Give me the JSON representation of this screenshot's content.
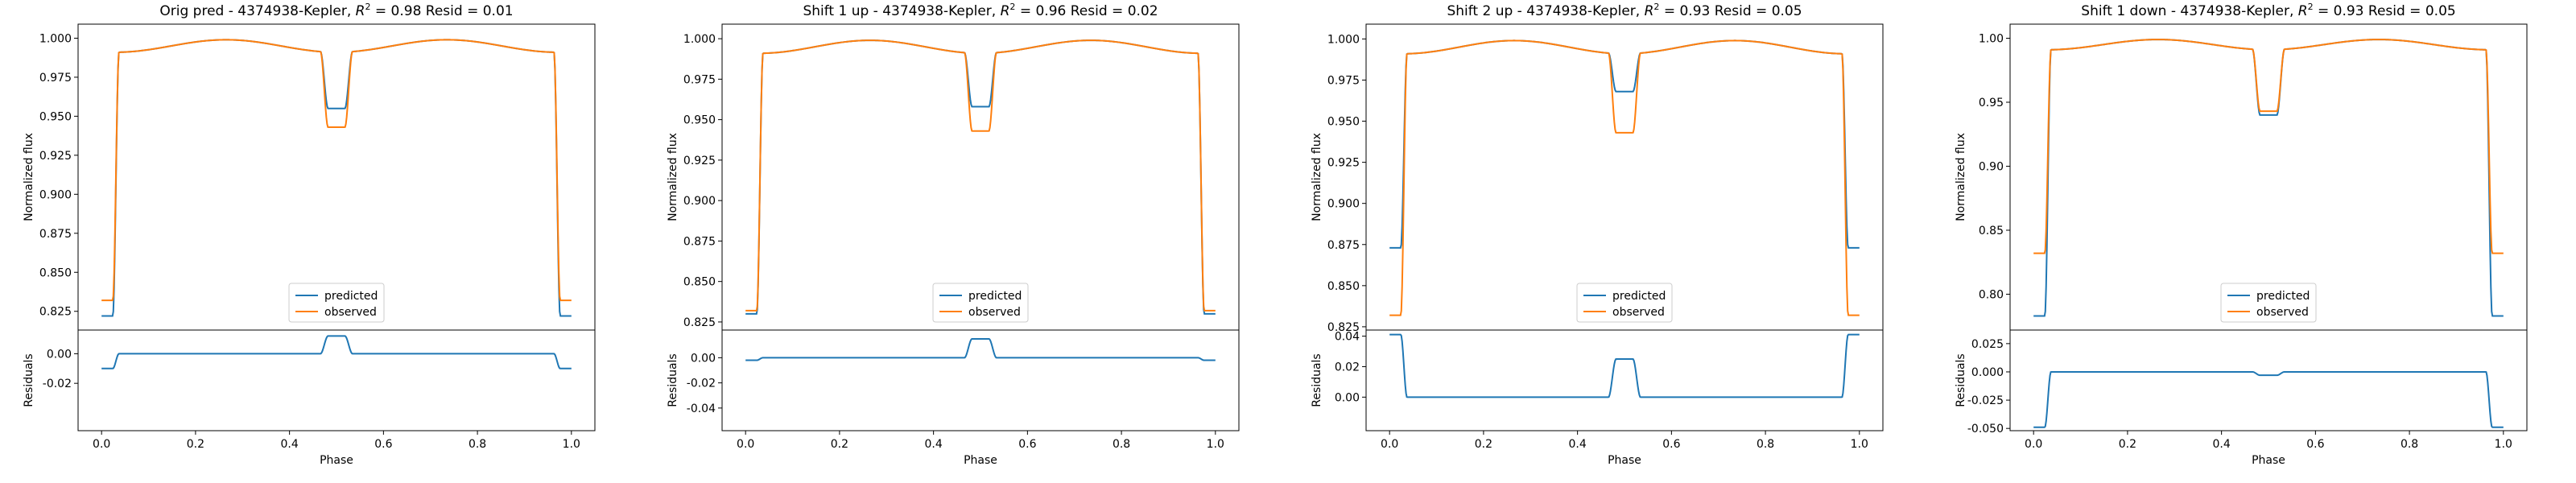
{
  "chart_data": [
    {
      "type": "line",
      "title": "Orig pred - 4374938-Kepler, $R^2 = 0.98$ Resid = 0.01",
      "title_prefix": "Orig pred - 4374938-Kepler,",
      "r2": "0.98",
      "resid": "0.01",
      "ylabel": "Normalized flux",
      "resid_ylabel": "Residuals",
      "xlabel": "Phase",
      "xlim": [
        -0.05,
        1.05
      ],
      "xticks": [
        "0.0",
        "0.2",
        "0.4",
        "0.6",
        "0.8",
        "1.0"
      ],
      "ylim": [
        0.813,
        1.009
      ],
      "yticks": [
        "0.825",
        "0.850",
        "0.875",
        "0.900",
        "0.925",
        "0.950",
        "0.975",
        "1.000"
      ],
      "resid_ylim": [
        -0.052,
        0.016
      ],
      "resid_yticks": [
        "0.00",
        "-0.02"
      ],
      "series": [
        {
          "name": "predicted",
          "color": "#1f77b4",
          "base": 0.822,
          "top": 0.999,
          "dip": 0.955
        },
        {
          "name": "observed",
          "color": "#ff7f0e",
          "base": 0.832,
          "top": 0.999,
          "dip": 0.943
        }
      ],
      "legend": "lower center"
    },
    {
      "type": "line",
      "title": "Shift 1 up - 4374938-Kepler, $R^2 = 0.96$ Resid = 0.02",
      "title_prefix": "Shift 1 up - 4374938-Kepler,",
      "r2": "0.96",
      "resid": "0.02",
      "ylabel": "Normalized flux",
      "resid_ylabel": "Residuals",
      "xlabel": "Phase",
      "xlim": [
        -0.05,
        1.05
      ],
      "xticks": [
        "0.0",
        "0.2",
        "0.4",
        "0.6",
        "0.8",
        "1.0"
      ],
      "ylim": [
        0.82,
        1.009
      ],
      "yticks": [
        "0.825",
        "0.850",
        "0.875",
        "0.900",
        "0.925",
        "0.950",
        "0.975",
        "1.000"
      ],
      "resid_ylim": [
        -0.058,
        0.022
      ],
      "resid_yticks": [
        "0.00",
        "-0.02",
        "-0.04"
      ],
      "series": [
        {
          "name": "predicted",
          "color": "#1f77b4",
          "base": 0.83,
          "top": 0.999,
          "dip": 0.958
        },
        {
          "name": "observed",
          "color": "#ff7f0e",
          "base": 0.832,
          "top": 0.999,
          "dip": 0.943
        }
      ],
      "legend": "lower center"
    },
    {
      "type": "line",
      "title": "Shift 2 up - 4374938-Kepler, $R^2 = 0.93$ Resid = 0.05",
      "title_prefix": "Shift 2 up - 4374938-Kepler,",
      "r2": "0.93",
      "resid": "0.05",
      "ylabel": "Normalized flux",
      "resid_ylabel": "Residuals",
      "xlabel": "Phase",
      "xlim": [
        -0.05,
        1.05
      ],
      "xticks": [
        "0.0",
        "0.2",
        "0.4",
        "0.6",
        "0.8",
        "1.0"
      ],
      "ylim": [
        0.823,
        1.009
      ],
      "yticks": [
        "0.825",
        "0.850",
        "0.875",
        "0.900",
        "0.925",
        "0.950",
        "0.975",
        "1.000"
      ],
      "resid_ylim": [
        -0.022,
        0.044
      ],
      "resid_yticks": [
        "0.04",
        "0.02",
        "0.00"
      ],
      "series": [
        {
          "name": "predicted",
          "color": "#1f77b4",
          "base": 0.873,
          "top": 0.999,
          "dip": 0.968
        },
        {
          "name": "observed",
          "color": "#ff7f0e",
          "base": 0.832,
          "top": 0.999,
          "dip": 0.943
        }
      ],
      "legend": "lower center"
    },
    {
      "type": "line",
      "title": "Shift 1 down - 4374938-Kepler, $R^2 = 0.93$ Resid = 0.05",
      "title_prefix": "Shift 1 down - 4374938-Kepler,",
      "r2": "0.93",
      "resid": "0.05",
      "ylabel": "Normalized flux",
      "resid_ylabel": "Residuals",
      "xlabel": "Phase",
      "xlim": [
        -0.05,
        1.05
      ],
      "xticks": [
        "0.0",
        "0.2",
        "0.4",
        "0.6",
        "0.8",
        "1.0"
      ],
      "ylim": [
        0.772,
        1.011
      ],
      "yticks": [
        "0.80",
        "0.85",
        "0.90",
        "0.95",
        "1.00"
      ],
      "resid_ylim": [
        -0.052,
        0.037
      ],
      "resid_yticks": [
        "0.025",
        "0.000",
        "-0.025",
        "-0.050"
      ],
      "series": [
        {
          "name": "predicted",
          "color": "#1f77b4",
          "base": 0.783,
          "top": 0.999,
          "dip": 0.94
        },
        {
          "name": "observed",
          "color": "#ff7f0e",
          "base": 0.832,
          "top": 0.999,
          "dip": 0.943
        }
      ],
      "legend": "lower center"
    }
  ]
}
